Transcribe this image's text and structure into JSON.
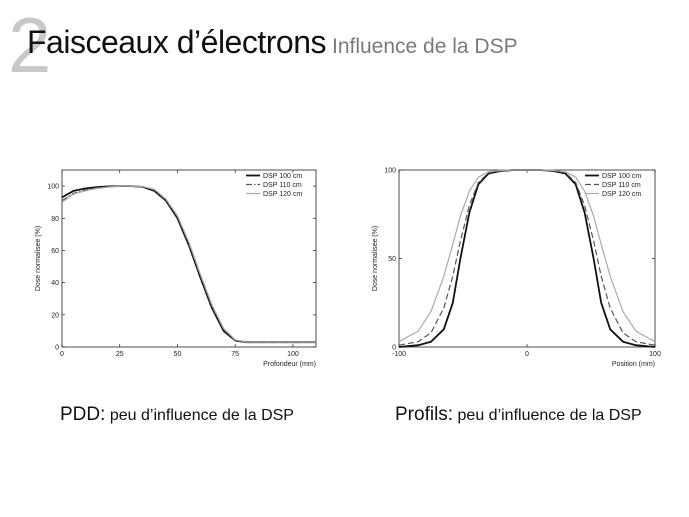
{
  "header": {
    "slide_number": "2",
    "title": "Faisceaux d’électrons",
    "subtitle": "Influence de la DSP"
  },
  "colors": {
    "dsp100": "#111111",
    "dsp110": "#555555",
    "dsp120": "#aaaaaa"
  },
  "captions": {
    "left_lead": "PDD:",
    "left_rest": " peu d’influence de la DSP",
    "right_lead": "Profils:",
    "right_rest": " peu d’influence de la DSP"
  },
  "chart_data": [
    {
      "type": "line",
      "title": "",
      "xlabel": "Profondeur (mm)",
      "ylabel": "Dose normalisee (%)",
      "xlim": [
        0,
        110
      ],
      "ylim": [
        0,
        110
      ],
      "x_ticks": [
        0,
        25,
        50,
        75,
        100
      ],
      "y_ticks": [
        0,
        20,
        40,
        60,
        80,
        100
      ],
      "legend_position": "top-right",
      "series": [
        {
          "name": "DSP 100 cm",
          "style": "solid",
          "x": [
            0,
            5,
            10,
            15,
            20,
            25,
            30,
            35,
            40,
            45,
            50,
            55,
            60,
            65,
            70,
            75,
            80,
            90,
            100,
            110
          ],
          "y": [
            93,
            97,
            98.5,
            99.3,
            99.8,
            100,
            100,
            99.5,
            97,
            91,
            80,
            63,
            43,
            24,
            10,
            4,
            3,
            3,
            3,
            3
          ]
        },
        {
          "name": "DSP 110 cm",
          "style": "dashdot",
          "x": [
            0,
            5,
            10,
            15,
            20,
            25,
            30,
            35,
            40,
            45,
            50,
            55,
            60,
            65,
            70,
            75,
            80,
            90,
            100,
            110
          ],
          "y": [
            91,
            95.5,
            97.5,
            98.8,
            99.5,
            100,
            100,
            99.6,
            97.5,
            91.5,
            81,
            64,
            44,
            25,
            11,
            4,
            3,
            3,
            3,
            3
          ]
        },
        {
          "name": "DSP 120 cm",
          "style": "solid-light",
          "x": [
            0,
            5,
            10,
            15,
            20,
            25,
            30,
            35,
            40,
            45,
            50,
            55,
            60,
            65,
            70,
            75,
            80,
            90,
            100,
            110
          ],
          "y": [
            90,
            95,
            97,
            98.5,
            99.4,
            100,
            100,
            99.7,
            98,
            92,
            81.5,
            65,
            45,
            26,
            11.5,
            4.5,
            3,
            3,
            3,
            3
          ]
        }
      ]
    },
    {
      "type": "line",
      "title": "",
      "xlabel": "Position (mm)",
      "ylabel": "Dose normalisee (%)",
      "xlim": [
        -100,
        100
      ],
      "ylim": [
        0,
        100
      ],
      "x_ticks": [
        -100,
        0,
        100
      ],
      "y_ticks": [
        0,
        50,
        100
      ],
      "legend_position": "top-right",
      "series": [
        {
          "name": "DSP 100 cm",
          "style": "solid",
          "x": [
            -100,
            -85,
            -75,
            -65,
            -58,
            -52,
            -45,
            -38,
            -30,
            -20,
            -10,
            0,
            10,
            20,
            30,
            38,
            45,
            52,
            58,
            65,
            75,
            85,
            100
          ],
          "y": [
            0,
            1,
            3,
            10,
            25,
            50,
            76,
            92,
            98,
            99.5,
            100,
            100,
            100,
            99.5,
            98,
            92,
            76,
            50,
            25,
            10,
            3,
            1,
            0
          ]
        },
        {
          "name": "DSP 110 cm",
          "style": "dashed",
          "x": [
            -100,
            -85,
            -75,
            -65,
            -58,
            -52,
            -45,
            -38,
            -30,
            -20,
            -10,
            0,
            10,
            20,
            30,
            38,
            45,
            52,
            58,
            65,
            75,
            85,
            100
          ],
          "y": [
            1,
            3,
            8,
            22,
            40,
            60,
            80,
            93,
            98.5,
            99.7,
            100,
            100,
            100,
            99.7,
            98.5,
            93,
            80,
            60,
            40,
            22,
            8,
            3,
            1
          ]
        },
        {
          "name": "DSP 120 cm",
          "style": "solid-light",
          "x": [
            -100,
            -85,
            -75,
            -65,
            -58,
            -52,
            -45,
            -38,
            -30,
            -20,
            -10,
            0,
            10,
            20,
            30,
            38,
            45,
            52,
            58,
            65,
            75,
            85,
            100
          ],
          "y": [
            3,
            9,
            20,
            40,
            58,
            74,
            88,
            96,
            99,
            99.8,
            100,
            100,
            100,
            99.8,
            99,
            96,
            88,
            74,
            58,
            40,
            20,
            9,
            3
          ]
        }
      ]
    }
  ]
}
